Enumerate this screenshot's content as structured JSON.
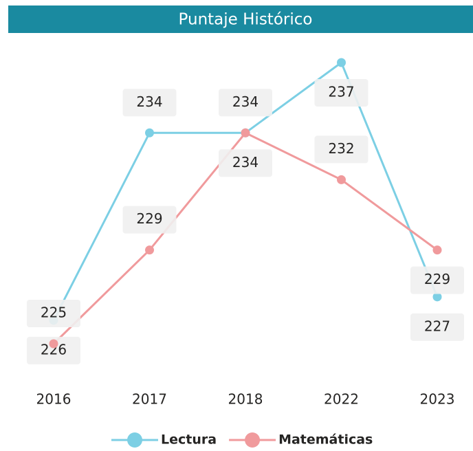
{
  "chart_data": {
    "type": "line",
    "title": "Puntaje Histórico",
    "categories": [
      "2016",
      "2017",
      "2018",
      "2022",
      "2023"
    ],
    "series": [
      {
        "name": "Lectura",
        "color": "#7ccfe4",
        "values": [
          226,
          234,
          234,
          237,
          227
        ]
      },
      {
        "name": "Matemáticas",
        "color": "#f09a9c",
        "values": [
          225,
          229,
          234,
          232,
          229
        ]
      }
    ]
  }
}
